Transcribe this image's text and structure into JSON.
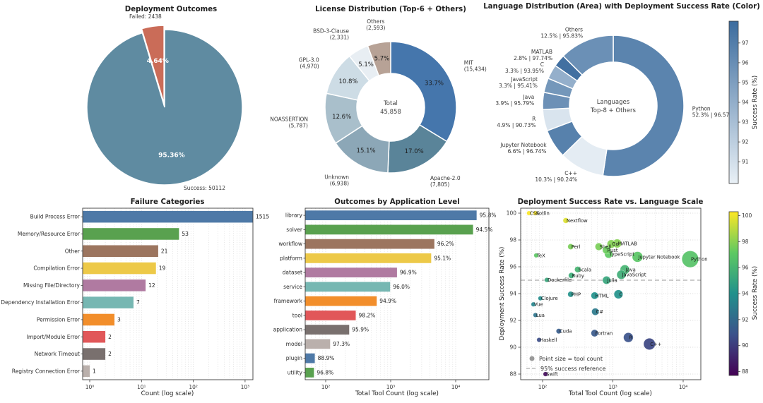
{
  "palette": {
    "bar_colors": [
      "#4e79a7",
      "#59a14f",
      "#9c755f",
      "#edc948",
      "#b07aa1",
      "#76b7b2",
      "#f28e2b",
      "#e15759",
      "#79706e",
      "#bab0ac"
    ],
    "pie_success_color": "#5f8ba1",
    "pie_failed_color": "#ca6c58",
    "blues_gradient": {
      "light": "#e9f0f6",
      "dark": "#3c6c9e",
      "vmin": 90.0,
      "vmax": 98.0
    },
    "viridis_stops": [
      [
        0,
        "#440154"
      ],
      [
        0.25,
        "#3b528b"
      ],
      [
        0.5,
        "#21918c"
      ],
      [
        0.75,
        "#5ec962"
      ],
      [
        1,
        "#fde725"
      ]
    ],
    "grid_color": "#dadada",
    "spine_color": "#3c3c3c",
    "ref_line_color": "#999999",
    "legend_marker_color": "#999999"
  },
  "chart_data": [
    {
      "type": "pie",
      "title": "Deployment Outcomes",
      "slices": [
        {
          "label": "Success",
          "count": 50112,
          "pct": 95.36,
          "pct_label": "95.36%",
          "outer_label": "Success: 50112"
        },
        {
          "label": "Failed",
          "count": 2438,
          "pct": 4.64,
          "pct_label": "4.64%",
          "outer_label": "Failed: 2438",
          "exploded": true
        }
      ]
    },
    {
      "type": "pie",
      "title": "License Distribution (Top-6 + Others)",
      "center_label": [
        "Total",
        "45,858"
      ],
      "total": 45858,
      "slices": [
        {
          "name": "MIT",
          "count_label": "(15,434)",
          "count": 15434,
          "pct": 33.7,
          "pct_label": "33.7%",
          "color": "#4576ac"
        },
        {
          "name": "Apache-2.0",
          "count_label": "(7,805)",
          "count": 7805,
          "pct": 17.0,
          "pct_label": "17.0%",
          "color": "#5a8499"
        },
        {
          "name": "Unknown",
          "count_label": "(6,938)",
          "count": 6938,
          "pct": 15.1,
          "pct_label": "15.1%",
          "color": "#8ca7b7"
        },
        {
          "name": "NOASSERTION",
          "count_label": "(5,787)",
          "count": 5787,
          "pct": 12.6,
          "pct_label": "12.6%",
          "color": "#a9bfcb"
        },
        {
          "name": "GPL-3.0",
          "count_label": "(4,970)",
          "count": 4970,
          "pct": 10.8,
          "pct_label": "10.8%",
          "color": "#cddce5"
        },
        {
          "name": "BSD-3-Clause",
          "count_label": "(2,331)",
          "count": 2331,
          "pct": 5.1,
          "pct_label": "5.1%",
          "color": "#e8eef3"
        },
        {
          "name": "Others",
          "count_label": "(2,593)",
          "count": 2593,
          "pct": 5.7,
          "pct_label": "5.7%",
          "color": "#b7a296"
        }
      ]
    },
    {
      "type": "pie",
      "title": "Language Distribution (Area) with Deployment Success Rate (Color)",
      "center_label": [
        "Languages",
        "Top-8 + Others"
      ],
      "slices": [
        {
          "name": "Python",
          "pct": 52.3,
          "rate": 96.57,
          "stat_label": "52.3% | 96.57%"
        },
        {
          "name": "C++",
          "pct": 10.3,
          "rate": 90.24,
          "stat_label": "10.3% | 90.24%"
        },
        {
          "name": "Jupyter Notebook",
          "pct": 6.6,
          "rate": 96.74,
          "stat_label": "6.6% | 96.74%"
        },
        {
          "name": "R",
          "pct": 4.9,
          "rate": 90.73,
          "stat_label": "4.9% | 90.73%"
        },
        {
          "name": "Java",
          "pct": 3.9,
          "rate": 95.79,
          "stat_label": "3.9% | 95.79%"
        },
        {
          "name": "JavaScript",
          "pct": 3.3,
          "rate": 95.41,
          "stat_label": "3.3% | 95.41%"
        },
        {
          "name": "C",
          "pct": 3.3,
          "rate": 93.95,
          "stat_label": "3.3% | 93.95%"
        },
        {
          "name": "MATLAB",
          "pct": 2.8,
          "rate": 97.74,
          "stat_label": "2.8% | 97.74%"
        },
        {
          "name": "Others",
          "pct": 12.5,
          "rate": 95.83,
          "stat_label": "12.5% | 95.83%"
        }
      ],
      "colorbar": {
        "label": "Success Rate (%)",
        "ticks": [
          91,
          92,
          93,
          94,
          95,
          96,
          97
        ],
        "vmin": 90.24,
        "vmax": 97.74
      }
    },
    {
      "type": "bar",
      "title": "Failure Categories",
      "xlabel": "Count (log scale)",
      "x_scale": "log",
      "xticks": [
        {
          "v": 1,
          "label": "10⁰"
        },
        {
          "v": 10,
          "label": "10¹"
        },
        {
          "v": 100,
          "label": "10²"
        },
        {
          "v": 1000,
          "label": "10³"
        }
      ],
      "categories": [
        "Build Process Error",
        "Memory/Resource Error",
        "Other",
        "Compilation Error",
        "Missing File/Directory",
        "Dependency Installation Error",
        "Permission Error",
        "Import/Module Error",
        "Network Timeout",
        "Registry Connection Error"
      ],
      "values": [
        1515,
        53,
        21,
        19,
        12,
        7,
        3,
        2,
        2,
        1
      ]
    },
    {
      "type": "bar",
      "title": "Outcomes by Application Level",
      "xlabel": "Total Tool Count (log scale)",
      "x_scale": "log",
      "xticks": [
        {
          "v": 100,
          "label": "10²"
        },
        {
          "v": 1000,
          "label": "10³"
        },
        {
          "v": 10000,
          "label": "10⁴"
        }
      ],
      "categories": [
        "library",
        "solver",
        "workflow",
        "platform",
        "dataset",
        "service",
        "framework",
        "tool",
        "application",
        "model",
        "plugin",
        "utility"
      ],
      "counts": [
        21000,
        18500,
        4700,
        4200,
        1250,
        980,
        610,
        290,
        230,
        117,
        68,
        66
      ],
      "rate_labels": [
        "95.8%",
        "94.5%",
        "96.2%",
        "95.1%",
        "96.9%",
        "96.0%",
        "94.9%",
        "98.2%",
        "95.9%",
        "97.3%",
        "88.9%",
        "96.8%"
      ]
    },
    {
      "type": "scatter",
      "title": "Deployment Success Rate vs. Language Scale",
      "xlabel": "Total Tool Count (log scale)",
      "ylabel": "Deployment Success Rate (%)",
      "x_scale": "log",
      "xticks": [
        {
          "v": 100,
          "label": "10²"
        },
        {
          "v": 1000,
          "label": "10³"
        },
        {
          "v": 10000,
          "label": "10⁴"
        }
      ],
      "yticks": [
        88,
        90,
        92,
        94,
        96,
        98,
        100
      ],
      "ref_value": 95,
      "legend": [
        "Point size = tool count",
        "95% success reference"
      ],
      "colorbar": {
        "label": "Success Rate (%)",
        "ticks": [
          88,
          90,
          92,
          94,
          96,
          98,
          100
        ],
        "vmin": 88,
        "vmax": 100
      },
      "points": [
        {
          "name": "CSS",
          "tool_count": 64,
          "success_rate": 100.0
        },
        {
          "name": "Kotlin",
          "tool_count": 79,
          "success_rate": 100.0
        },
        {
          "name": "Nextflow",
          "tool_count": 214,
          "success_rate": 99.45
        },
        {
          "name": "Perl",
          "tool_count": 251,
          "success_rate": 97.5
        },
        {
          "name": "TeX",
          "tool_count": 81,
          "success_rate": 96.85
        },
        {
          "name": "Shell",
          "tool_count": 631,
          "success_rate": 97.5
        },
        {
          "name": "Rust",
          "tool_count": 813,
          "success_rate": 97.25
        },
        {
          "name": "TypeScript",
          "tool_count": 871,
          "success_rate": 96.95
        },
        {
          "name": "Go",
          "tool_count": 950,
          "success_rate": 97.7
        },
        {
          "name": "MATLAB",
          "tool_count": 1150,
          "success_rate": 97.74
        },
        {
          "name": "Jupyter Notebook",
          "tool_count": 2240,
          "success_rate": 96.74
        },
        {
          "name": "Python",
          "tool_count": 12600,
          "success_rate": 96.57
        },
        {
          "name": "Scala",
          "tool_count": 316,
          "success_rate": 95.8
        },
        {
          "name": "Ruby",
          "tool_count": 257,
          "success_rate": 95.35
        },
        {
          "name": "Java",
          "tool_count": 1480,
          "success_rate": 95.79
        },
        {
          "name": "JavaScript",
          "tool_count": 1320,
          "success_rate": 95.41
        },
        {
          "name": "Dockerfile",
          "tool_count": 115,
          "success_rate": 95.02
        },
        {
          "name": "Julia",
          "tool_count": 813,
          "success_rate": 95.0
        },
        {
          "name": "PHP",
          "tool_count": 251,
          "success_rate": 93.95
        },
        {
          "name": "HTML",
          "tool_count": 550,
          "success_rate": 93.85
        },
        {
          "name": "C",
          "tool_count": 1200,
          "success_rate": 93.95
        },
        {
          "name": "Clojure",
          "tool_count": 93,
          "success_rate": 93.65
        },
        {
          "name": "Vue",
          "tool_count": 74,
          "success_rate": 93.2
        },
        {
          "name": "C#",
          "tool_count": 562,
          "success_rate": 92.65
        },
        {
          "name": "Lua",
          "tool_count": 79,
          "success_rate": 92.4
        },
        {
          "name": "Cuda",
          "tool_count": 170,
          "success_rate": 91.2
        },
        {
          "name": "Fortran",
          "tool_count": 550,
          "success_rate": 91.05
        },
        {
          "name": "R",
          "tool_count": 1660,
          "success_rate": 90.73
        },
        {
          "name": "Haskell",
          "tool_count": 89,
          "success_rate": 90.55
        },
        {
          "name": "C++",
          "tool_count": 3310,
          "success_rate": 90.24
        },
        {
          "name": "Swift",
          "tool_count": 110,
          "success_rate": 88.0
        }
      ]
    }
  ]
}
